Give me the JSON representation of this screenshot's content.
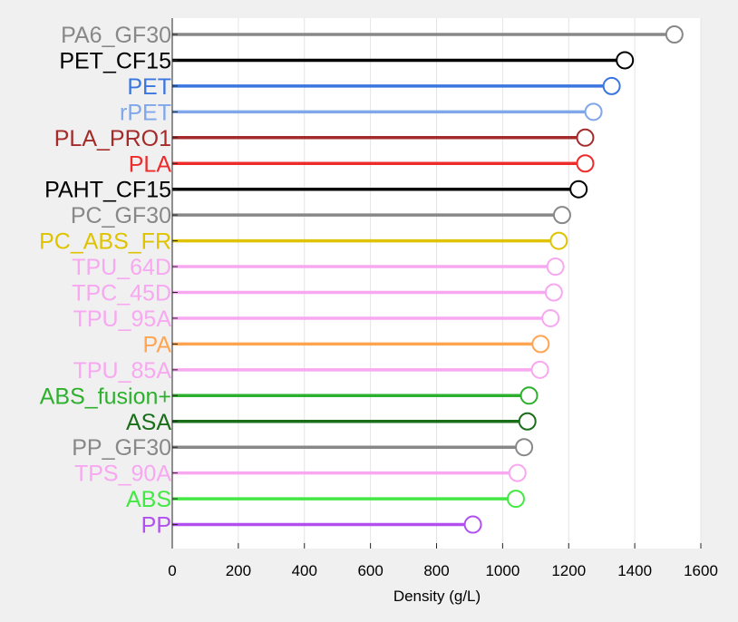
{
  "chart_data": {
    "type": "lollipop",
    "orientation": "horizontal",
    "xlabel": "Density (g/L)",
    "xlim": [
      0,
      1600
    ],
    "xticks": [
      0,
      200,
      400,
      600,
      800,
      1000,
      1200,
      1400,
      1600
    ],
    "grid": "vertical",
    "categories": [
      "PA6_GF30",
      "PET_CF15",
      "PET",
      "rPET",
      "PLA_PRO1",
      "PLA",
      "PAHT_CF15",
      "PC_GF30",
      "PC_ABS_FR",
      "TPU_64D",
      "TPC_45D",
      "TPU_95A",
      "PA",
      "TPU_85A",
      "ABS_fusion+",
      "ASA",
      "PP_GF30",
      "TPS_90A",
      "ABS",
      "PP"
    ],
    "values": [
      1520,
      1370,
      1330,
      1275,
      1250,
      1250,
      1230,
      1180,
      1170,
      1160,
      1155,
      1145,
      1115,
      1113,
      1080,
      1075,
      1065,
      1045,
      1040,
      910
    ],
    "colors": [
      "#888888",
      "#000000",
      "#3a76e0",
      "#7fa7ea",
      "#a52a2a",
      "#ee2c2c",
      "#000000",
      "#888888",
      "#e0c300",
      "#f7a8f0",
      "#f7a8f0",
      "#f7a8f0",
      "#ffa552",
      "#f7a8f0",
      "#2db02d",
      "#1a6e1a",
      "#888888",
      "#f7a8f0",
      "#44e844",
      "#b050ee"
    ]
  }
}
